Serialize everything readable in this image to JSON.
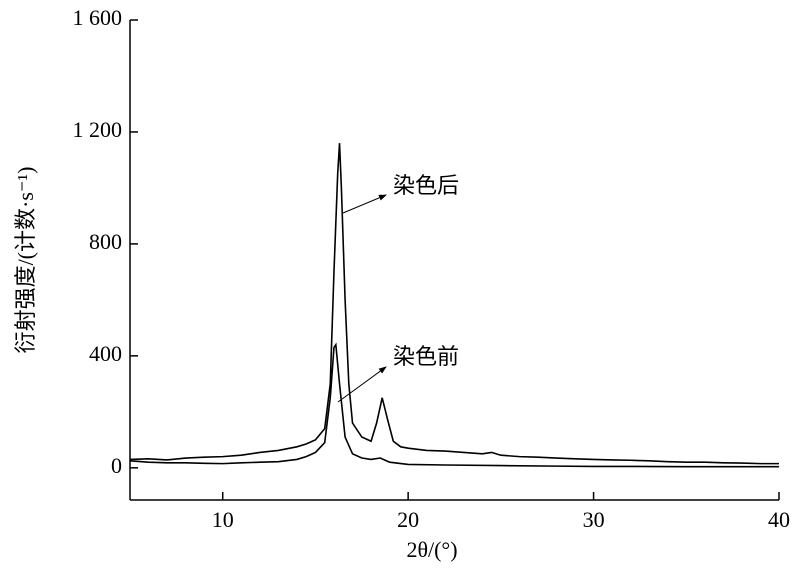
{
  "chart_data": {
    "type": "line",
    "x_label": "2θ/(°)",
    "y_label": "衍射强度/(计数·s⁻¹)",
    "xlim": [
      5,
      40
    ],
    "xticks": [
      10,
      20,
      30,
      40
    ],
    "ylim": [
      -115,
      1600
    ],
    "yticks": [
      0,
      400,
      800,
      {
        "value": 1200,
        "label": "1 200"
      },
      {
        "value": 1600,
        "label": "1 600"
      }
    ],
    "series": [
      {
        "name": "染色后",
        "color": "#000000",
        "x": [
          5,
          6,
          7,
          8,
          9,
          10,
          11,
          12,
          13,
          14,
          14.5,
          15,
          15.5,
          15.8,
          16.0,
          16.2,
          16.3,
          16.4,
          16.6,
          16.8,
          17.0,
          17.5,
          18.0,
          18.3,
          18.6,
          18.9,
          19.2,
          19.6,
          20,
          21,
          22,
          23,
          24,
          24.5,
          25,
          26,
          27,
          28,
          29,
          30,
          31,
          32,
          33,
          34,
          35,
          36,
          37,
          38,
          39,
          40
        ],
        "values": [
          30,
          32,
          28,
          35,
          38,
          40,
          45,
          55,
          62,
          75,
          85,
          100,
          140,
          300,
          700,
          1050,
          1160,
          1000,
          600,
          300,
          160,
          110,
          95,
          160,
          250,
          170,
          95,
          75,
          70,
          62,
          60,
          55,
          50,
          55,
          45,
          40,
          38,
          35,
          32,
          30,
          28,
          27,
          25,
          22,
          20,
          20,
          18,
          17,
          15,
          15
        ]
      },
      {
        "name": "染色前",
        "color": "#000000",
        "x": [
          5,
          6,
          7,
          8,
          9,
          10,
          11,
          12,
          13,
          14,
          14.5,
          15,
          15.5,
          15.8,
          16.0,
          16.1,
          16.3,
          16.6,
          17,
          17.5,
          18,
          18.5,
          19,
          20,
          22,
          25,
          28,
          30,
          32,
          35,
          38,
          40
        ],
        "values": [
          25,
          20,
          18,
          18,
          16,
          15,
          18,
          20,
          22,
          30,
          40,
          55,
          90,
          250,
          430,
          440,
          300,
          110,
          50,
          35,
          30,
          35,
          20,
          12,
          10,
          8,
          6,
          5,
          5,
          4,
          4,
          4
        ]
      }
    ]
  }
}
